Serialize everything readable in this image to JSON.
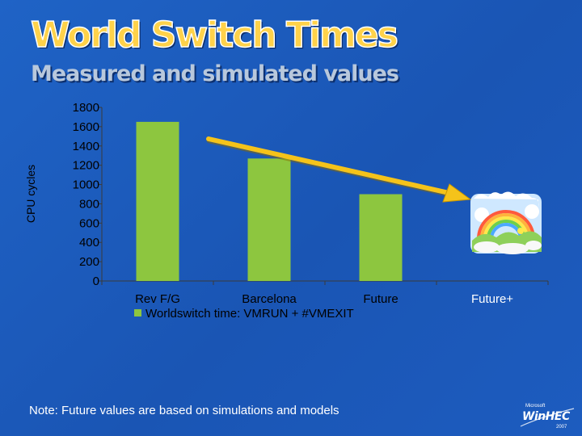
{
  "title": "World Switch Times",
  "subtitle": "Measured and simulated values",
  "note": "Note:  Future values are based on simulations and models",
  "logo": {
    "brand": "Microsoft",
    "name": "WinHEC",
    "year": "2007"
  },
  "colors": {
    "bar": "#8dc63f",
    "arrow": "#f5c31a",
    "title": "#ffd24a",
    "background": "#1f63c6"
  },
  "icons": {
    "future_plus": "rainbow-clouds-icon"
  },
  "chart_data": {
    "type": "bar",
    "title": "",
    "ylabel": "CPU cycles",
    "xlabel": "",
    "categories": [
      "Rev F/G",
      "Barcelona",
      "Future",
      "Future+"
    ],
    "series": [
      {
        "name": "Worldswitch time: VMRUN + #VMEXIT",
        "values": [
          1650,
          1270,
          900,
          null
        ]
      }
    ],
    "ylim": [
      0,
      1800
    ],
    "yticks": [
      0,
      200,
      400,
      600,
      800,
      1000,
      1200,
      1400,
      1600,
      1800
    ],
    "grid": false,
    "legend": "bottom-left",
    "annotations": [
      "downward trend arrow from Barcelona toward Future+",
      "rainbow-clouds-icon at Future+"
    ]
  }
}
